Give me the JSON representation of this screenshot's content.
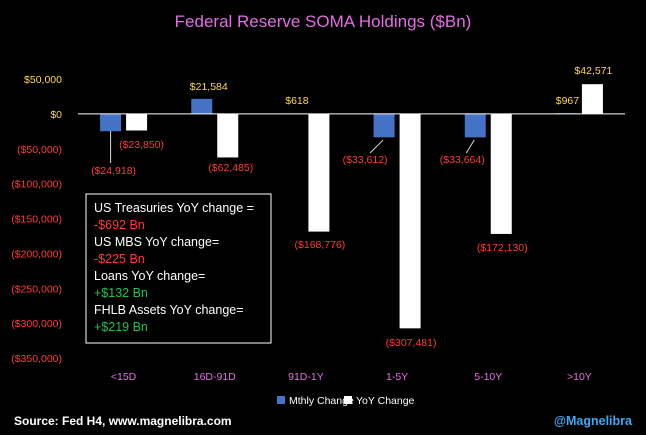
{
  "chart_data": {
    "type": "bar",
    "title": "Federal Reserve SOMA Holdings ($Bn)",
    "categories": [
      "<15D",
      "16D-91D",
      "91D-1Y",
      "1-5Y",
      "5-10Y",
      ">10Y"
    ],
    "series": [
      {
        "name": "Mthly Change",
        "values": [
          -24918,
          21584,
          618,
          -33612,
          -33664,
          967
        ],
        "labels": [
          "($24,918)",
          "$21,584",
          "$618",
          "($33,612)",
          "($33,664)",
          "$967"
        ]
      },
      {
        "name": "YoY Change",
        "values": [
          -23850,
          -62485,
          -168776,
          -307481,
          -172130,
          42571
        ],
        "labels": [
          "($23,850)",
          "($62,485)",
          "($168,776)",
          "($307,481)",
          "($172,130)",
          "$42,571"
        ]
      }
    ],
    "ylim": [
      -350000,
      50000
    ],
    "yticks": [
      50000,
      0,
      -50000,
      -100000,
      -150000,
      -200000,
      -250000,
      -300000,
      -350000
    ],
    "ytick_labels": [
      "$50,000",
      "$0",
      "($50,000)",
      "($100,000)",
      "($150,000)",
      "($200,000)",
      "($250,000)",
      "($300,000)",
      "($350,000)"
    ],
    "legend_position": "bottom-center",
    "grid": false
  },
  "annotation_box": {
    "lines": [
      {
        "text": "US Treasuries YoY change =",
        "color": "#ffffff"
      },
      {
        "text": "-$692 Bn",
        "color": "#ff3b3b"
      },
      {
        "text": "US MBS YoY change=",
        "color": "#ffffff"
      },
      {
        "text": "-$225 Bn",
        "color": "#ff3b3b"
      },
      {
        "text": "Loans YoY change=",
        "color": "#ffffff"
      },
      {
        "text": "+$132 Bn",
        "color": "#21c24a"
      },
      {
        "text": "FHLB Assets YoY change=",
        "color": "#ffffff"
      },
      {
        "text": "+$219 Bn",
        "color": "#21c24a"
      }
    ]
  },
  "footer": {
    "source": "Source: Fed H4, www.magnelibra.com",
    "handle": "@Magnelibra"
  },
  "colors": {
    "mthly": "#4472c4",
    "yoy": "#ffffff",
    "positive_label": "#ffd84a",
    "negative_label": "#ff3b3b",
    "title": "#e36ee3"
  }
}
